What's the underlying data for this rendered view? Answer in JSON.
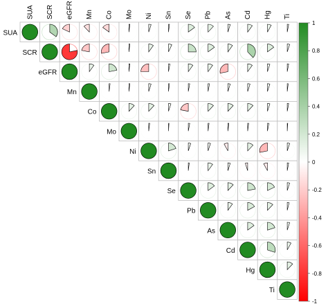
{
  "chart_data": {
    "type": "heatmap",
    "style": "pie correlation matrix (upper triangle)",
    "variables": [
      "SUA",
      "SCR",
      "eGFR",
      "Mn",
      "Co",
      "Mo",
      "Ni",
      "Sn",
      "Se",
      "Pb",
      "As",
      "Cd",
      "Hg",
      "Ti"
    ],
    "matrix": [
      [
        1,
        0.35,
        -0.18,
        -0.12,
        -0.15,
        0.02,
        0.05,
        0.02,
        0.15,
        0.12,
        0.05,
        0.1,
        0.08,
        0.03
      ],
      [
        null,
        1,
        -0.78,
        -0.22,
        -0.28,
        0.02,
        0.1,
        0.07,
        0.25,
        0.15,
        0.1,
        0.38,
        0.15,
        0.05
      ],
      [
        null,
        null,
        1,
        0.1,
        0.22,
        0.02,
        -0.25,
        0.03,
        0.1,
        0.1,
        -0.28,
        0.1,
        0.05,
        0.03
      ],
      [
        null,
        null,
        null,
        1,
        0.02,
        0.02,
        0.05,
        0.02,
        0.03,
        0.03,
        0.05,
        0.05,
        0.05,
        0.02
      ],
      [
        null,
        null,
        null,
        null,
        1,
        0.12,
        0.12,
        0.05,
        -0.22,
        0.12,
        0.12,
        0.12,
        0.05,
        0.03
      ],
      [
        null,
        null,
        null,
        null,
        null,
        1,
        0.02,
        0.01,
        0.03,
        0.02,
        0.02,
        0.02,
        0.03,
        0.01
      ],
      [
        null,
        null,
        null,
        null,
        null,
        null,
        1,
        0.2,
        0.05,
        0.05,
        -0.08,
        0.12,
        -0.28,
        0.05
      ],
      [
        null,
        null,
        null,
        null,
        null,
        null,
        null,
        1,
        0.02,
        0.1,
        0.05,
        -0.05,
        -0.08,
        0.03
      ],
      [
        null,
        null,
        null,
        null,
        null,
        null,
        null,
        null,
        1,
        0.15,
        0.12,
        0.22,
        0.18,
        0.05
      ],
      [
        null,
        null,
        null,
        null,
        null,
        null,
        null,
        null,
        null,
        1,
        0.1,
        0.17,
        0.12,
        0.04
      ],
      [
        null,
        null,
        null,
        null,
        null,
        null,
        null,
        null,
        null,
        null,
        1,
        0.15,
        0.2,
        0.05
      ],
      [
        null,
        null,
        null,
        null,
        null,
        null,
        null,
        null,
        null,
        null,
        null,
        1,
        0.3,
        0.08
      ],
      [
        null,
        null,
        null,
        null,
        null,
        null,
        null,
        null,
        null,
        null,
        null,
        null,
        1,
        0.12
      ],
      [
        null,
        null,
        null,
        null,
        null,
        null,
        null,
        null,
        null,
        null,
        null,
        null,
        null,
        1
      ]
    ],
    "colorbar": {
      "range": [
        -1,
        1
      ],
      "ticks": [
        "1",
        "0.8",
        "0.6",
        "0.4",
        "0.2",
        "0",
        "-0.2",
        "-0.4",
        "-0.6",
        "-0.8",
        "-1"
      ],
      "tick_values": [
        1,
        0.8,
        0.6,
        0.4,
        0.2,
        0,
        -0.2,
        -0.4,
        -0.6,
        -0.8,
        -1
      ],
      "colors": {
        "positive": "#228b22",
        "neutral": "#ffffff",
        "negative": "#ff0000"
      }
    }
  }
}
